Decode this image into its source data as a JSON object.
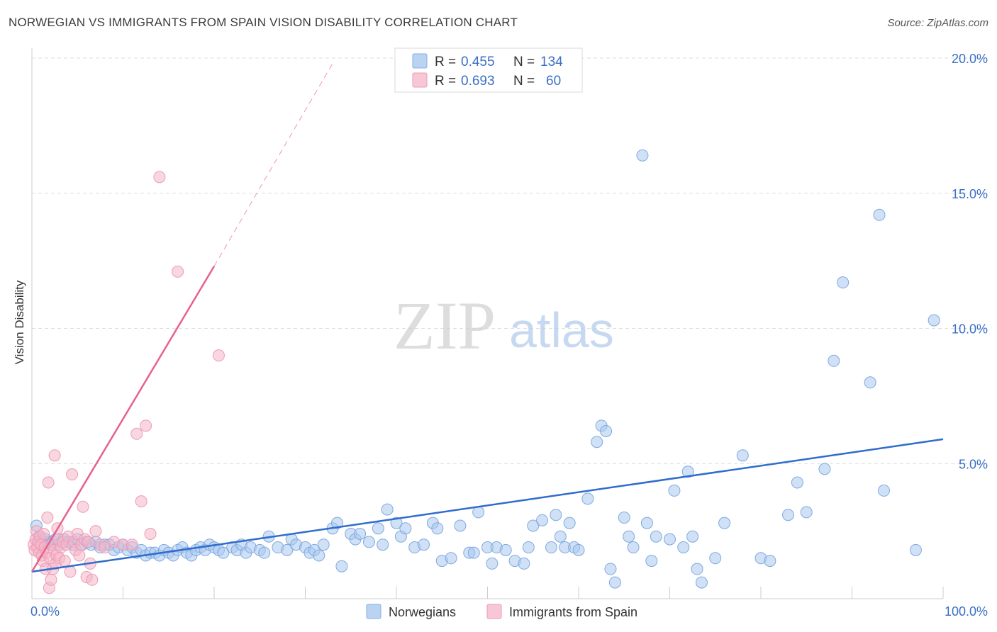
{
  "title": "NORWEGIAN VS IMMIGRANTS FROM SPAIN VISION DISABILITY CORRELATION CHART",
  "source": "Source: ZipAtlas.com",
  "watermark": {
    "zip": "ZIP",
    "atlas": "atlas"
  },
  "colors": {
    "blue_point": "#a9c8ef",
    "blue_line": "#2f6ccc",
    "pink_point": "#f4b6c8",
    "pink_line": "#e8618c",
    "tick": "#3b6fc4",
    "grid": "#dddddd"
  },
  "legend": {
    "r_label": "R =",
    "n_label": "N =",
    "rows": [
      {
        "r": "0.455",
        "n": "134",
        "series": "blue"
      },
      {
        "r": "0.693",
        "n": "60",
        "series": "pink"
      }
    ]
  },
  "bottom_legend": [
    "Norwegians",
    "Immigrants from Spain"
  ],
  "chart_data": {
    "type": "scatter",
    "title": "NORWEGIAN VS IMMIGRANTS FROM SPAIN VISION DISABILITY CORRELATION CHART",
    "xlabel": "",
    "ylabel": "Vision Disability",
    "xlim": [
      0,
      100
    ],
    "ylim": [
      0,
      20
    ],
    "x_tick_labels": [
      "0.0%",
      "100.0%"
    ],
    "y_ticks": [
      5,
      10,
      15,
      20
    ],
    "y_tick_labels": [
      "5.0%",
      "10.0%",
      "15.0%",
      "20.0%"
    ],
    "grid": true,
    "legend_position": "top-center",
    "series": [
      {
        "name": "Norwegians",
        "R": 0.455,
        "N": 134,
        "trend": {
          "x": [
            0,
            100
          ],
          "y": [
            1.0,
            5.9
          ]
        },
        "points": [
          [
            0.5,
            2.7
          ],
          [
            0.8,
            2.3
          ],
          [
            1.0,
            2.1
          ],
          [
            1.2,
            2.0
          ],
          [
            1.5,
            2.2
          ],
          [
            1.8,
            2.1
          ],
          [
            2.0,
            2.0
          ],
          [
            2.3,
            2.1
          ],
          [
            2.6,
            2.2
          ],
          [
            3.0,
            2.0
          ],
          [
            3.5,
            2.2
          ],
          [
            4.0,
            2.1
          ],
          [
            4.5,
            2.0
          ],
          [
            5.0,
            2.2
          ],
          [
            5.5,
            2.0
          ],
          [
            6.0,
            2.1
          ],
          [
            6.5,
            2.0
          ],
          [
            7.0,
            2.1
          ],
          [
            7.5,
            1.9
          ],
          [
            8.0,
            2.0
          ],
          [
            8.5,
            2.0
          ],
          [
            9.0,
            1.8
          ],
          [
            9.5,
            1.9
          ],
          [
            10.0,
            2.0
          ],
          [
            10.5,
            1.8
          ],
          [
            11.0,
            1.9
          ],
          [
            11.5,
            1.7
          ],
          [
            12.0,
            1.8
          ],
          [
            12.5,
            1.6
          ],
          [
            13.0,
            1.7
          ],
          [
            13.5,
            1.7
          ],
          [
            14.0,
            1.6
          ],
          [
            14.5,
            1.8
          ],
          [
            15.0,
            1.7
          ],
          [
            15.5,
            1.6
          ],
          [
            16.0,
            1.8
          ],
          [
            16.5,
            1.9
          ],
          [
            17.0,
            1.7
          ],
          [
            17.5,
            1.6
          ],
          [
            18.0,
            1.8
          ],
          [
            18.5,
            1.9
          ],
          [
            19.0,
            1.8
          ],
          [
            19.5,
            2.0
          ],
          [
            20.0,
            1.9
          ],
          [
            20.5,
            1.8
          ],
          [
            21.0,
            1.7
          ],
          [
            22.0,
            1.9
          ],
          [
            22.5,
            1.8
          ],
          [
            23.0,
            2.0
          ],
          [
            23.5,
            1.7
          ],
          [
            24.0,
            1.9
          ],
          [
            25.0,
            1.8
          ],
          [
            25.5,
            1.7
          ],
          [
            26.0,
            2.3
          ],
          [
            27.0,
            1.9
          ],
          [
            28.0,
            1.8
          ],
          [
            28.5,
            2.2
          ],
          [
            29.0,
            2.0
          ],
          [
            30.0,
            1.9
          ],
          [
            30.5,
            1.7
          ],
          [
            31.0,
            1.8
          ],
          [
            31.5,
            1.6
          ],
          [
            32.0,
            2.0
          ],
          [
            33.0,
            2.6
          ],
          [
            33.5,
            2.8
          ],
          [
            34.0,
            1.2
          ],
          [
            35.0,
            2.4
          ],
          [
            35.5,
            2.2
          ],
          [
            36.0,
            2.4
          ],
          [
            37.0,
            2.1
          ],
          [
            38.0,
            2.6
          ],
          [
            38.5,
            2.0
          ],
          [
            39.0,
            3.3
          ],
          [
            40.0,
            2.8
          ],
          [
            40.5,
            2.3
          ],
          [
            41.0,
            2.6
          ],
          [
            42.0,
            1.9
          ],
          [
            43.0,
            2.0
          ],
          [
            44.0,
            2.8
          ],
          [
            44.5,
            2.6
          ],
          [
            45.0,
            1.4
          ],
          [
            46.0,
            1.5
          ],
          [
            47.0,
            2.7
          ],
          [
            48.0,
            1.7
          ],
          [
            48.5,
            1.7
          ],
          [
            49.0,
            3.2
          ],
          [
            50.0,
            1.9
          ],
          [
            50.5,
            1.3
          ],
          [
            51.0,
            1.9
          ],
          [
            52.0,
            1.8
          ],
          [
            53.0,
            1.4
          ],
          [
            54.0,
            1.3
          ],
          [
            54.5,
            1.9
          ],
          [
            55.0,
            2.7
          ],
          [
            56.0,
            2.9
          ],
          [
            57.0,
            1.9
          ],
          [
            57.5,
            3.1
          ],
          [
            58.0,
            2.3
          ],
          [
            58.5,
            1.9
          ],
          [
            59.0,
            2.8
          ],
          [
            59.5,
            1.9
          ],
          [
            60.0,
            1.8
          ],
          [
            61.0,
            3.7
          ],
          [
            62.0,
            5.8
          ],
          [
            62.5,
            6.4
          ],
          [
            63.0,
            6.2
          ],
          [
            63.5,
            1.1
          ],
          [
            64.0,
            0.6
          ],
          [
            65.0,
            3.0
          ],
          [
            65.5,
            2.3
          ],
          [
            66.0,
            1.9
          ],
          [
            67.0,
            16.4
          ],
          [
            67.5,
            2.8
          ],
          [
            68.0,
            1.4
          ],
          [
            68.5,
            2.3
          ],
          [
            70.0,
            2.2
          ],
          [
            70.5,
            4.0
          ],
          [
            71.5,
            1.9
          ],
          [
            72.0,
            4.7
          ],
          [
            72.5,
            2.3
          ],
          [
            73.0,
            1.1
          ],
          [
            73.5,
            0.6
          ],
          [
            75.0,
            1.5
          ],
          [
            76.0,
            2.8
          ],
          [
            78.0,
            5.3
          ],
          [
            80.0,
            1.5
          ],
          [
            81.0,
            1.4
          ],
          [
            83.0,
            3.1
          ],
          [
            84.0,
            4.3
          ],
          [
            85.0,
            3.2
          ],
          [
            87.0,
            4.8
          ],
          [
            88.0,
            8.8
          ],
          [
            89.0,
            11.7
          ],
          [
            92.0,
            8.0
          ],
          [
            93.0,
            14.2
          ],
          [
            93.5,
            4.0
          ],
          [
            97.0,
            1.8
          ],
          [
            99.0,
            10.3
          ]
        ]
      },
      {
        "name": "Immigrants from Spain",
        "R": 0.693,
        "N": 60,
        "trend": {
          "x": [
            0,
            20
          ],
          "y": [
            1.0,
            12.3
          ]
        },
        "trend_dashed": {
          "x": [
            20,
            33
          ],
          "y": [
            12.3,
            19.8
          ]
        },
        "points": [
          [
            0.2,
            2.0
          ],
          [
            0.3,
            1.8
          ],
          [
            0.4,
            2.2
          ],
          [
            0.5,
            2.5
          ],
          [
            0.6,
            1.9
          ],
          [
            0.7,
            2.1
          ],
          [
            0.8,
            1.7
          ],
          [
            0.9,
            2.3
          ],
          [
            1.0,
            2.0
          ],
          [
            1.1,
            1.6
          ],
          [
            1.2,
            1.4
          ],
          [
            1.3,
            2.4
          ],
          [
            1.4,
            1.9
          ],
          [
            1.5,
            1.1
          ],
          [
            1.6,
            1.7
          ],
          [
            1.7,
            3.0
          ],
          [
            1.8,
            4.3
          ],
          [
            1.9,
            0.4
          ],
          [
            2.0,
            1.5
          ],
          [
            2.1,
            0.7
          ],
          [
            2.2,
            2.0
          ],
          [
            2.3,
            1.1
          ],
          [
            2.4,
            1.8
          ],
          [
            2.5,
            5.3
          ],
          [
            2.6,
            1.3
          ],
          [
            2.7,
            1.6
          ],
          [
            2.8,
            2.6
          ],
          [
            2.9,
            2.2
          ],
          [
            3.0,
            1.5
          ],
          [
            3.2,
            1.9
          ],
          [
            3.4,
            2.1
          ],
          [
            3.6,
            1.4
          ],
          [
            3.8,
            2.0
          ],
          [
            4.0,
            2.3
          ],
          [
            4.2,
            1.0
          ],
          [
            4.4,
            4.6
          ],
          [
            4.6,
            2.1
          ],
          [
            4.8,
            1.8
          ],
          [
            5.0,
            2.4
          ],
          [
            5.2,
            1.6
          ],
          [
            5.4,
            2.0
          ],
          [
            5.6,
            3.4
          ],
          [
            5.8,
            2.2
          ],
          [
            6.0,
            0.8
          ],
          [
            6.2,
            2.1
          ],
          [
            6.4,
            1.3
          ],
          [
            6.6,
            0.7
          ],
          [
            7.0,
            2.5
          ],
          [
            7.5,
            2.0
          ],
          [
            8.0,
            1.9
          ],
          [
            9.0,
            2.1
          ],
          [
            10.0,
            2.0
          ],
          [
            11.0,
            2.0
          ],
          [
            11.5,
            6.1
          ],
          [
            12.0,
            3.6
          ],
          [
            12.5,
            6.4
          ],
          [
            13.0,
            2.4
          ],
          [
            14.0,
            15.6
          ],
          [
            16.0,
            12.1
          ],
          [
            20.5,
            9.0
          ]
        ]
      }
    ]
  }
}
